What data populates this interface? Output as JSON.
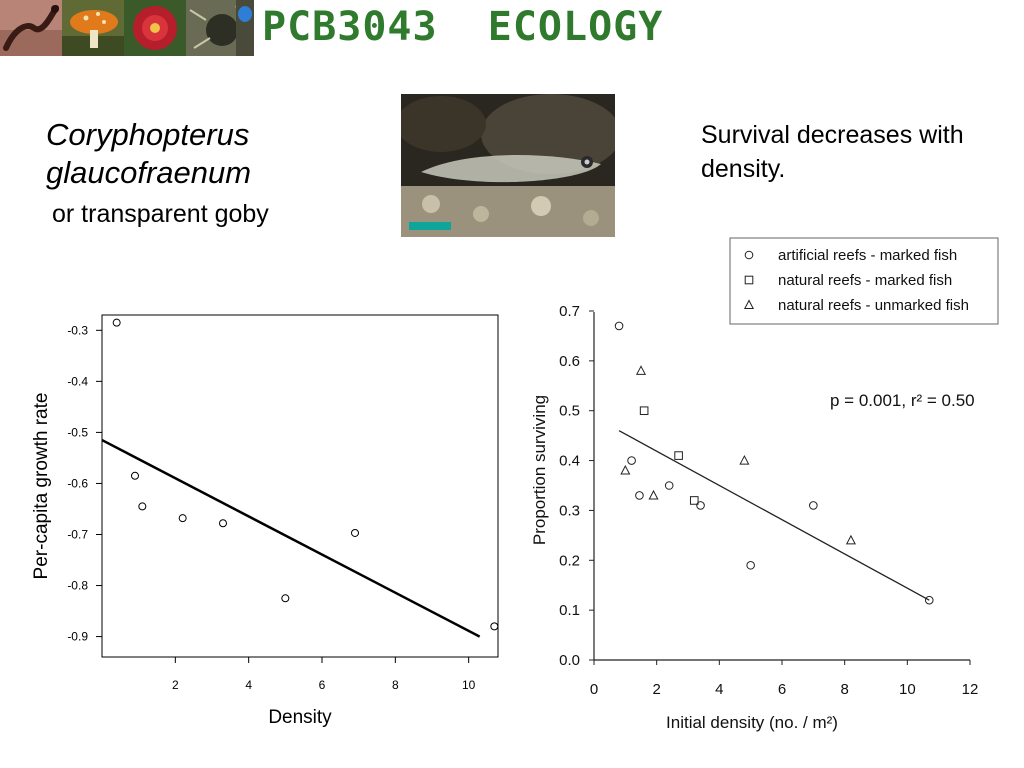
{
  "header": {
    "title": "PCB3043  ECOLOGY",
    "thumbnails": [
      "salamander-photo",
      "mushroom-photo",
      "flower-photo",
      "moss-photo",
      "blue-egg-photo"
    ]
  },
  "species": {
    "scientific_name_line1": "Coryphopterus",
    "scientific_name_line2": "glaucofraenum",
    "common_name": "or transparent goby"
  },
  "headline": "Survival decreases with density.",
  "colors": {
    "title_green": "#2f7a2c"
  },
  "chart_data": [
    {
      "type": "scatter",
      "xlabel": "Density",
      "ylabel": "Per-capita growth rate",
      "xlim": [
        0,
        10.8
      ],
      "ylim": [
        -0.94,
        -0.27
      ],
      "xticks": [
        "2",
        "4",
        "6",
        "8",
        "10"
      ],
      "yticks": [
        "-0.3",
        "-0.4",
        "-0.5",
        "-0.6",
        "-0.7",
        "-0.8",
        "-0.9"
      ],
      "points": [
        {
          "x": 0.4,
          "y": -0.285
        },
        {
          "x": 0.9,
          "y": -0.585
        },
        {
          "x": 1.1,
          "y": -0.645
        },
        {
          "x": 2.2,
          "y": -0.668
        },
        {
          "x": 3.3,
          "y": -0.678
        },
        {
          "x": 5.0,
          "y": -0.825
        },
        {
          "x": 6.9,
          "y": -0.697
        },
        {
          "x": 10.7,
          "y": -0.88
        }
      ],
      "fit_line": {
        "x": [
          0,
          10.3
        ],
        "y": [
          -0.515,
          -0.9
        ]
      },
      "grid": false
    },
    {
      "type": "scatter",
      "xlabel": "Initial density (no. / m²)",
      "ylabel": "Proportion surviving",
      "xlim": [
        0,
        12
      ],
      "ylim": [
        0,
        0.7
      ],
      "xticks": [
        "0",
        "2",
        "4",
        "6",
        "8",
        "10",
        "12"
      ],
      "yticks": [
        "0.0",
        "0.1",
        "0.2",
        "0.3",
        "0.4",
        "0.5",
        "0.6",
        "0.7"
      ],
      "annotation": "p = 0.001, r² = 0.50",
      "legend_position": "top-right",
      "series": [
        {
          "name": "artificial reefs - marked fish",
          "marker": "circle",
          "points": [
            {
              "x": 0.8,
              "y": 0.67
            },
            {
              "x": 1.2,
              "y": 0.4
            },
            {
              "x": 1.45,
              "y": 0.33
            },
            {
              "x": 2.4,
              "y": 0.35
            },
            {
              "x": 3.4,
              "y": 0.31
            },
            {
              "x": 5.0,
              "y": 0.19
            },
            {
              "x": 7.0,
              "y": 0.31
            },
            {
              "x": 10.7,
              "y": 0.12
            }
          ]
        },
        {
          "name": "natural reefs - marked fish",
          "marker": "square",
          "points": [
            {
              "x": 1.6,
              "y": 0.5
            },
            {
              "x": 2.7,
              "y": 0.41
            },
            {
              "x": 3.2,
              "y": 0.32
            }
          ]
        },
        {
          "name": "natural reefs - unmarked fish",
          "marker": "triangle",
          "points": [
            {
              "x": 1.0,
              "y": 0.38
            },
            {
              "x": 1.5,
              "y": 0.58
            },
            {
              "x": 1.9,
              "y": 0.33
            },
            {
              "x": 4.8,
              "y": 0.4
            },
            {
              "x": 8.2,
              "y": 0.24
            }
          ]
        }
      ],
      "fit_line": {
        "x": [
          0.8,
          10.7
        ],
        "y": [
          0.46,
          0.12
        ]
      },
      "grid": false
    }
  ]
}
